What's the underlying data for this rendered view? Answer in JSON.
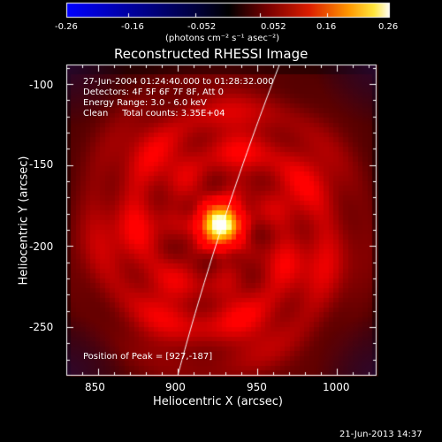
{
  "title": "Reconstructed RHESSI Image",
  "colorbar": {
    "ticks": [
      "-0.26",
      "-0.16",
      "-0.052",
      "0.052",
      "0.16",
      "0.26"
    ],
    "values": [
      -0.26,
      -0.16,
      -0.052,
      0.052,
      0.16,
      0.26
    ],
    "units": "(photons cm⁻² s⁻¹ asec⁻²)",
    "colors": [
      "#0000ff",
      "#000000",
      "#7a0000",
      "#e04000",
      "#ffc000",
      "#ffffff"
    ]
  },
  "annotations": {
    "line1": "27-Jun-2004 01:24:40.000 to 01:28:32.000",
    "line2": "Detectors: 4F 5F 6F 7F 8F, Att 0",
    "line3": "Energy Range: 3.0 - 6.0 keV",
    "line4": "Clean     Total counts: 3.35E+04",
    "peak": "Position of Peak = [927,-187]"
  },
  "timestamp": "21-Jun-2013 14:37",
  "axes": {
    "xlabel": "Heliocentric X (arcsec)",
    "ylabel": "Heliocentric Y (arcsec)",
    "xticks": [
      "850",
      "900",
      "950",
      "1000"
    ],
    "yticks": [
      "-100",
      "-150",
      "-200",
      "-250"
    ],
    "xlim": [
      830,
      1025
    ],
    "ylim": [
      -280,
      -88
    ]
  },
  "image": {
    "peak_position": [
      927,
      -187
    ],
    "peak_radius_arcsec": 9,
    "ring_center": [
      927,
      -190
    ],
    "ring_radius_arcsec": 55,
    "limb_curve_x_at_top": 964,
    "limb_curve_x_at_bottom": 900,
    "colormap": "red-temperature"
  }
}
